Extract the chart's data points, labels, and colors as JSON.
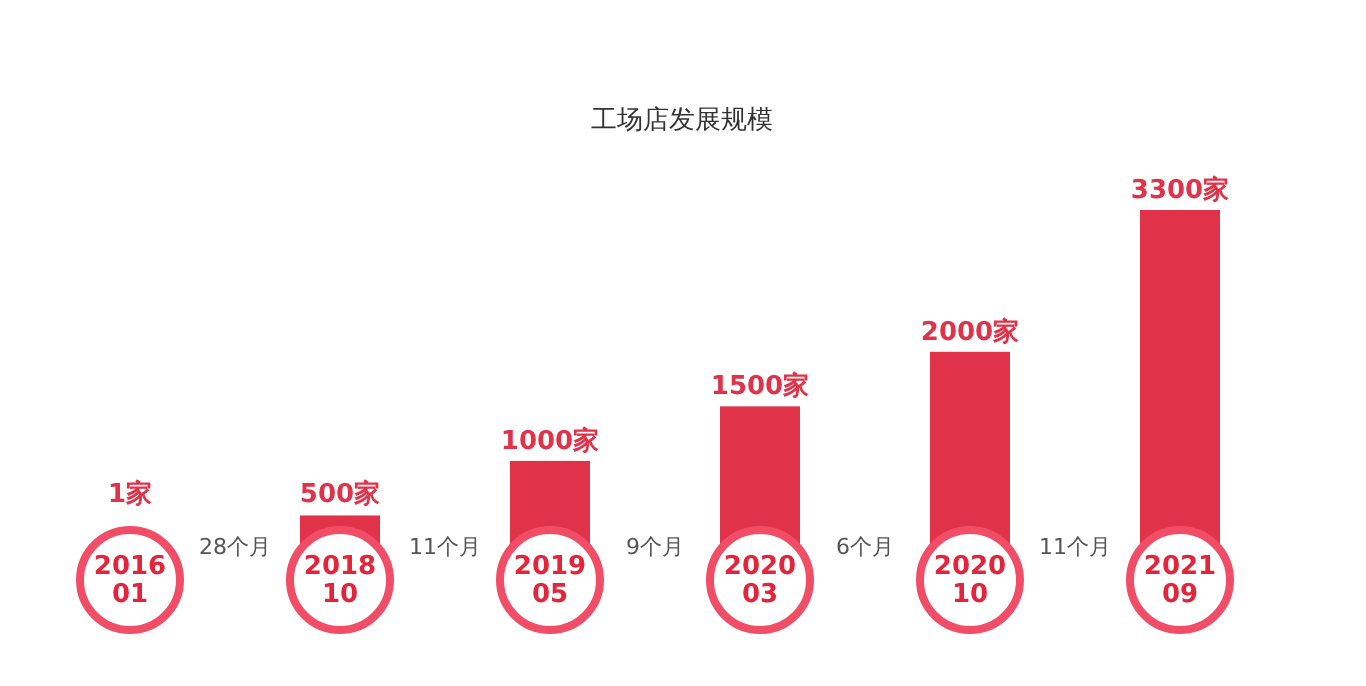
{
  "chart_data": {
    "type": "bar",
    "title": "工场店发展规模",
    "categories": [
      "2016 01",
      "2018 10",
      "2019 05",
      "2020 03",
      "2020 10",
      "2021 09"
    ],
    "values": [
      1,
      500,
      1000,
      1500,
      2000,
      3300
    ],
    "value_labels": [
      "1家",
      "500家",
      "1000家",
      "1500家",
      "2000家",
      "3300家"
    ],
    "color": "#e0334a",
    "annotations": [
      "28个月",
      "11个月",
      "9个月",
      "6个月",
      "11个月"
    ]
  }
}
